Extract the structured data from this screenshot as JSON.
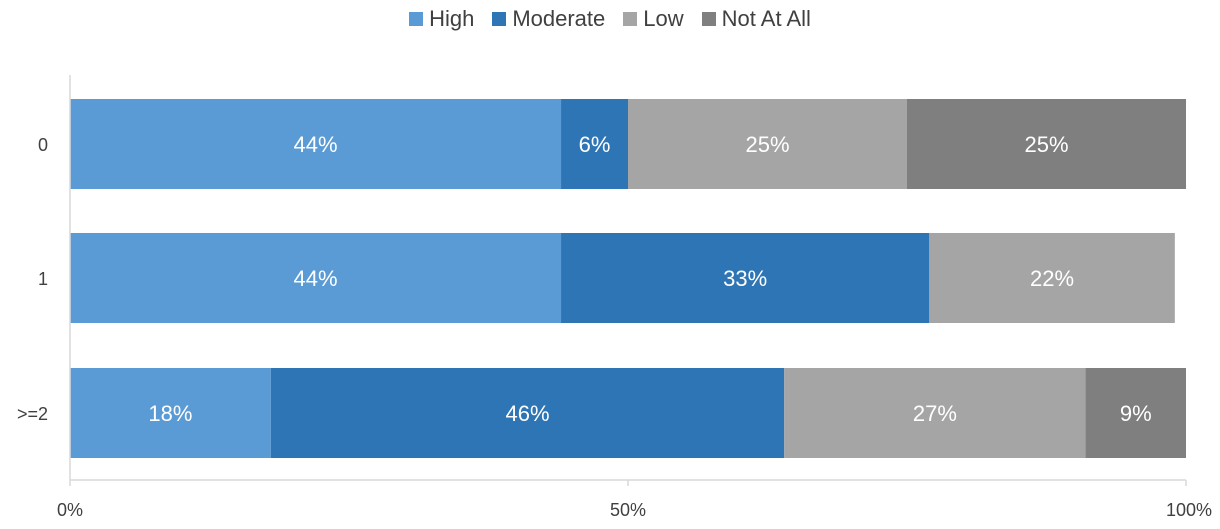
{
  "chart_data": {
    "type": "bar",
    "orientation": "horizontal",
    "stacked": true,
    "categories": [
      "0",
      "1",
      ">=2"
    ],
    "series": [
      {
        "name": "High",
        "color": "#5b9bd5",
        "values": [
          44,
          44,
          18
        ],
        "labels": [
          "44%",
          "44%",
          "18%"
        ]
      },
      {
        "name": "Moderate",
        "color": "#2e75b6",
        "values": [
          6,
          33,
          46
        ],
        "labels": [
          "6%",
          "33%",
          "46%"
        ]
      },
      {
        "name": "Low",
        "color": "#a5a5a5",
        "values": [
          25,
          22,
          27
        ],
        "labels": [
          "25%",
          "22%",
          "27%"
        ]
      },
      {
        "name": "Not At All",
        "color": "#7f7f7f",
        "values": [
          25,
          0,
          9
        ],
        "labels": [
          "25%",
          "",
          "9%"
        ]
      }
    ],
    "xlim": [
      0,
      100
    ],
    "x_ticks": [
      "0%",
      "50%",
      "100%"
    ],
    "x_tick_values": [
      0,
      50,
      100
    ],
    "legend_position": "top",
    "grid": false,
    "title": "",
    "xlabel": "",
    "ylabel": ""
  }
}
